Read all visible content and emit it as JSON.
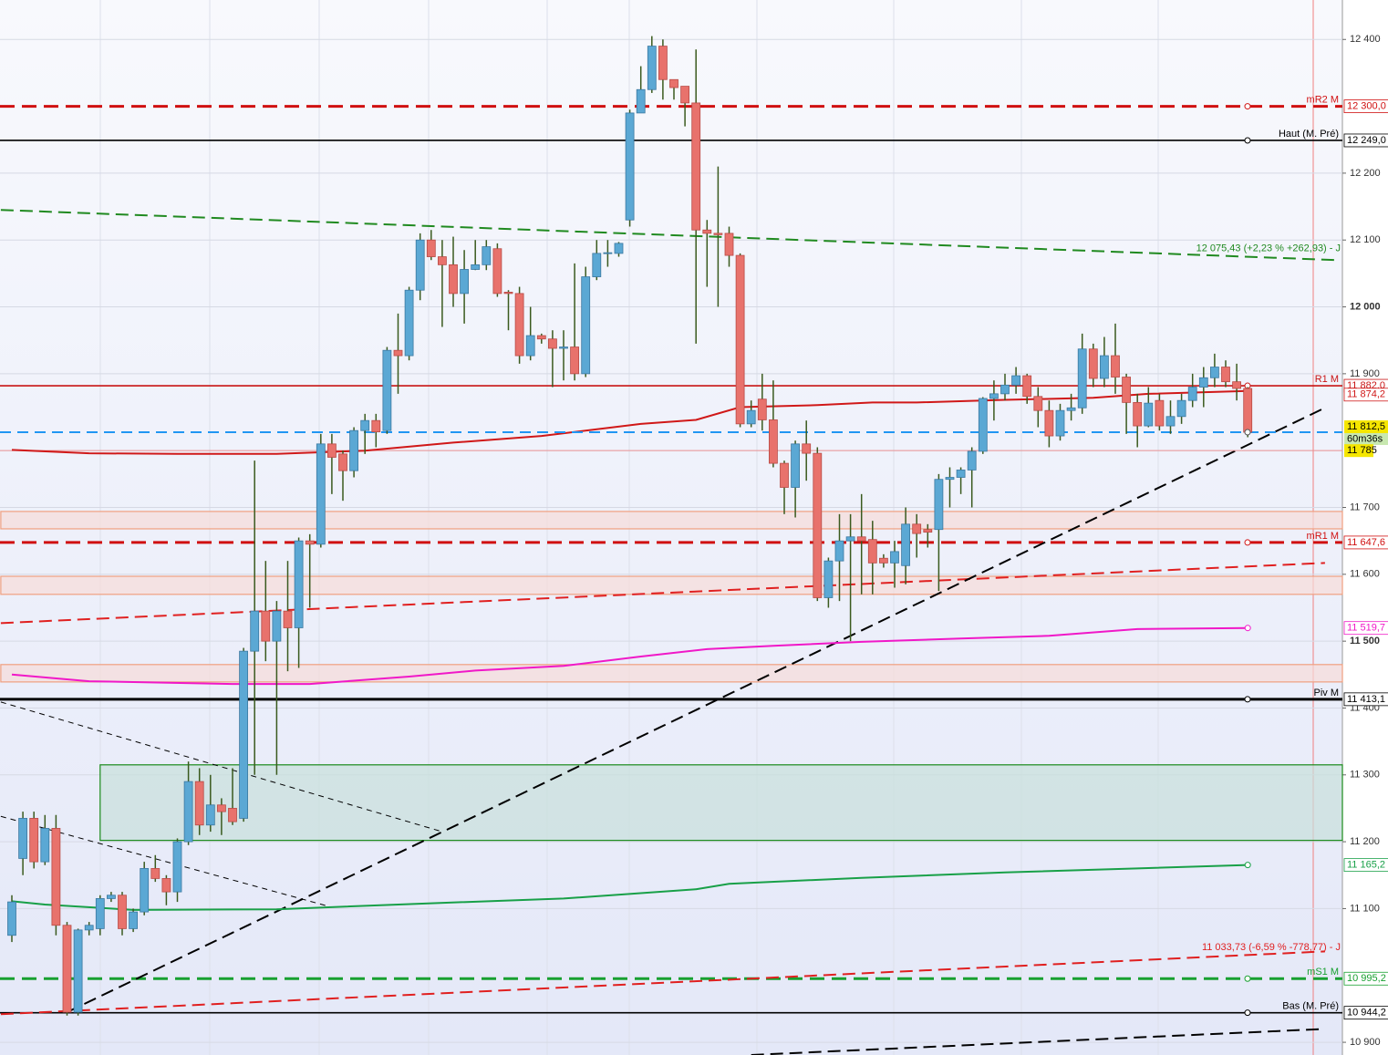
{
  "chart_data": {
    "type": "candlestick",
    "ylim": [
      10881,
      12459
    ],
    "yticks": [
      {
        "value": 12400,
        "label": "12 400"
      },
      {
        "value": 12200,
        "label": "12 200"
      },
      {
        "value": 12100,
        "label": "12 100"
      },
      {
        "value": 12000,
        "label": "12 000"
      },
      {
        "value": 11900,
        "label": "11 900"
      },
      {
        "value": 11700,
        "label": "11 700"
      },
      {
        "value": 11600,
        "label": "11 600"
      },
      {
        "value": 11500,
        "label": "11 500"
      },
      {
        "value": 11400,
        "label": "11 400"
      },
      {
        "value": 11300,
        "label": "11 300"
      },
      {
        "value": 11200,
        "label": "11 200"
      },
      {
        "value": 11100,
        "label": "11 100"
      },
      {
        "value": 10900,
        "label": "10 900"
      }
    ],
    "grid": true,
    "up_color": "#5ba8d4",
    "down_color": "#e8726c",
    "wick_color": "#3a5a1e",
    "open": [
      11060,
      11175,
      11235,
      11170,
      11220,
      11075,
      10945,
      11068,
      11070,
      11115,
      11120,
      11070,
      11095,
      11160,
      11145,
      11125,
      11200,
      11290,
      11225,
      11255,
      11250,
      11235,
      11485,
      11545,
      11500,
      11545,
      11520,
      11650,
      11645,
      11795,
      11780,
      11755,
      11815,
      11830,
      11815,
      11935,
      11927,
      12025,
      12100,
      12075,
      12063,
      12020,
      12056,
      12063,
      12087,
      12022,
      12020,
      11927,
      11957,
      11952,
      11938,
      11940,
      11900,
      12045,
      12080,
      12080,
      12130,
      12290,
      12325,
      12390,
      12340,
      12330,
      12305,
      12115,
      12110,
      12110,
      12077,
      11825,
      11862,
      11831,
      11766,
      11730,
      11795,
      11781,
      11565,
      11620,
      11650,
      11656,
      11652,
      11624,
      11617,
      11613,
      11675,
      11667,
      11667,
      11742,
      11745,
      11756,
      11784,
      11863,
      11870,
      11883,
      11897,
      11866,
      11845,
      11807,
      11845,
      11849,
      11937,
      11893,
      11927,
      11895,
      11857,
      11822,
      11860,
      11822,
      11836,
      11860,
      11880,
      11894,
      11910,
      11888,
      11878
    ],
    "high": [
      11120,
      11245,
      11245,
      11240,
      11240,
      11080,
      11070,
      11080,
      11120,
      11125,
      11125,
      11100,
      11170,
      11180,
      11150,
      11205,
      11320,
      11310,
      11300,
      11265,
      11310,
      11490,
      11770,
      11620,
      11560,
      11620,
      11655,
      11660,
      11810,
      11810,
      11785,
      11820,
      11840,
      11840,
      11940,
      11990,
      12030,
      12110,
      12115,
      12100,
      12105,
      12085,
      12100,
      12100,
      12095,
      12025,
      12030,
      12000,
      11960,
      11965,
      11965,
      12065,
      12060,
      12100,
      12100,
      12097,
      12295,
      12360,
      12405,
      12400,
      12340,
      12330,
      12385,
      12130,
      12210,
      12120,
      12080,
      11860,
      11900,
      11890,
      11770,
      11800,
      11830,
      11790,
      11625,
      11690,
      11690,
      11720,
      11680,
      11630,
      11650,
      11700,
      11690,
      11675,
      11750,
      11760,
      11760,
      11790,
      11865,
      11890,
      11900,
      11910,
      11900,
      11880,
      11860,
      11855,
      11870,
      11960,
      11945,
      11955,
      11975,
      11900,
      11870,
      11880,
      11870,
      11860,
      11870,
      11900,
      11910,
      11930,
      11920,
      11915,
      11880
    ],
    "low": [
      11050,
      11150,
      11160,
      11165,
      11060,
      10940,
      10940,
      11060,
      11060,
      11110,
      11060,
      11065,
      11090,
      11140,
      11105,
      11110,
      11195,
      11210,
      11215,
      11210,
      11225,
      11230,
      11300,
      11470,
      11300,
      11455,
      11460,
      11550,
      11640,
      11720,
      11710,
      11745,
      11780,
      11790,
      11810,
      11870,
      11920,
      12010,
      12070,
      11970,
      12000,
      11975,
      12055,
      12055,
      12015,
      11965,
      11915,
      11920,
      11945,
      11880,
      11890,
      11890,
      11895,
      12040,
      12060,
      12075,
      12120,
      12290,
      12320,
      12310,
      12310,
      12270,
      11945,
      12030,
      12000,
      12060,
      11820,
      11820,
      11815,
      11760,
      11690,
      11685,
      11740,
      11560,
      11550,
      11560,
      11500,
      11570,
      11570,
      11610,
      11580,
      11585,
      11625,
      11640,
      11575,
      11700,
      11720,
      11700,
      11780,
      11830,
      11860,
      11870,
      11855,
      11820,
      11790,
      11800,
      11830,
      11840,
      11880,
      11880,
      11870,
      11810,
      11790,
      11820,
      11815,
      11810,
      11825,
      11850,
      11850,
      11880,
      11880,
      11860,
      11805
    ],
    "close": [
      11110,
      11235,
      11170,
      11220,
      11075,
      10945,
      11068,
      11075,
      11115,
      11120,
      11070,
      11095,
      11160,
      11145,
      11125,
      11200,
      11290,
      11225,
      11255,
      11245,
      11230,
      11485,
      11545,
      11500,
      11545,
      11520,
      11650,
      11645,
      11795,
      11775,
      11755,
      11815,
      11830,
      11813,
      11935,
      11927,
      12025,
      12100,
      12075,
      12063,
      12020,
      12056,
      12063,
      12090,
      12020,
      12020,
      11927,
      11957,
      11952,
      11938,
      11940,
      11900,
      12045,
      12080,
      12081,
      12095,
      12290,
      12325,
      12390,
      12340,
      12328,
      12305,
      12115,
      12110,
      12108,
      12077,
      11825,
      11845,
      11831,
      11766,
      11730,
      11795,
      11781,
      11565,
      11620,
      11650,
      11656,
      11650,
      11617,
      11617,
      11634,
      11675,
      11661,
      11663,
      11742,
      11745,
      11756,
      11784,
      11863,
      11870,
      11883,
      11897,
      11866,
      11845,
      11807,
      11845,
      11849,
      11937,
      11893,
      11927,
      11895,
      11857,
      11822,
      11856,
      11822,
      11836,
      11860,
      11880,
      11894,
      11910,
      11888,
      11878,
      11812.5
    ],
    "levels": [
      {
        "name": "mR2 M",
        "value": 12300,
        "label": "12 300,0",
        "color": "#d01010",
        "style": "dashed"
      },
      {
        "name": "Haut (M. Pré)",
        "value": 12249,
        "label": "12 249,0",
        "color": "#000000",
        "style": "solid"
      },
      {
        "name": "R1 M",
        "value": 11882,
        "label": "11 882,0",
        "color": "#c81414",
        "style": "solid"
      },
      {
        "name": "mR1 M",
        "value": 11647.6,
        "label": "11 647,6",
        "color": "#d01010",
        "style": "dashed"
      },
      {
        "name": "Piv M",
        "value": 11413.1,
        "label": "11 413,1",
        "color": "#000000",
        "style": "bold"
      },
      {
        "name": "mS1 M",
        "value": 10995.2,
        "label": "10 995,2",
        "color": "#18a030",
        "style": "dashed"
      },
      {
        "name": "Bas (M. Pré)",
        "value": 10944.2,
        "label": "10 944,2",
        "color": "#000000",
        "style": "solid"
      }
    ],
    "price": {
      "value": 11812.5,
      "label": "11 812,5",
      "countdown": "60m36s",
      "color": "#2196f3"
    },
    "session_low": {
      "value": 11785,
      "label": "11 785",
      "color": "#e89090"
    },
    "moving_averages": [
      {
        "color": "#d01818",
        "label": "11 874,2",
        "x": [
          0,
          7,
          15,
          24,
          32,
          40,
          48,
          57,
          62,
          66,
          73,
          78,
          82,
          90,
          98,
          103,
          112
        ],
        "values": [
          11786,
          11781,
          11780,
          11780,
          11785,
          11797,
          11807,
          11825,
          11831,
          11850,
          11853,
          11857,
          11857,
          11861,
          11864,
          11870,
          11874.2
        ]
      },
      {
        "color": "#f018c8",
        "label": "11 519,7",
        "x": [
          0,
          7,
          20,
          27,
          36,
          42,
          50,
          57,
          63,
          69,
          77,
          86,
          94,
          102,
          112
        ],
        "values": [
          11450,
          11440,
          11436,
          11436,
          11447,
          11456,
          11463,
          11477,
          11488,
          11493,
          11499,
          11504,
          11508,
          11518,
          11519.7
        ]
      },
      {
        "color": "#18a048",
        "label": "11 165,2",
        "x": [
          0,
          3,
          11,
          24,
          38,
          50,
          62,
          65,
          77,
          90,
          102,
          112
        ],
        "values": [
          11111,
          11106,
          11098,
          11099,
          11108,
          11115,
          11129,
          11137,
          11146,
          11154,
          11160,
          11165.2
        ]
      }
    ],
    "trendlines": [
      {
        "color": "#208a20",
        "style": "dashed",
        "x": [
          -1,
          120
        ],
        "values": [
          12145,
          12070
        ],
        "label": "12 075,43 (+2,23 % +262,93) - J"
      },
      {
        "color": "#e02020",
        "style": "dashed",
        "x": [
          -1,
          119
        ],
        "values": [
          11527,
          11617
        ]
      },
      {
        "color": "#e02020",
        "style": "dashed",
        "x": [
          -1,
          119
        ],
        "values": [
          10942,
          11036
        ],
        "label": "11 033,73 (-6,59 % -778,77) - J"
      },
      {
        "color": "#000000",
        "style": "dashed",
        "x": [
          5,
          119
        ],
        "values": [
          10945,
          11849
        ]
      },
      {
        "color": "#000000",
        "style": "thin",
        "x": [
          -1,
          39
        ],
        "values": [
          11409,
          11215
        ]
      },
      {
        "color": "#000000",
        "style": "thin",
        "x": [
          -1,
          29
        ],
        "values": [
          11238,
          11102
        ]
      },
      {
        "color": "#000000",
        "style": "dashed",
        "x": [
          67,
          119
        ],
        "values": [
          10881,
          10920
        ]
      }
    ],
    "zones": [
      {
        "color": "#1a8a1a",
        "fill": "#c8e0dc",
        "x": 8,
        "values": [
          11315,
          11202
        ]
      },
      {
        "color": "#f0a080",
        "fill": "#f6dcd8",
        "x": -1,
        "values": [
          11694,
          11668
        ]
      },
      {
        "color": "#f0a080",
        "fill": "#f6dcd8",
        "x": -1,
        "values": [
          11597,
          11570
        ]
      },
      {
        "color": "#f0a080",
        "fill": "#f6dcd8",
        "x": -1,
        "values": [
          11465,
          11439
        ]
      }
    ]
  }
}
